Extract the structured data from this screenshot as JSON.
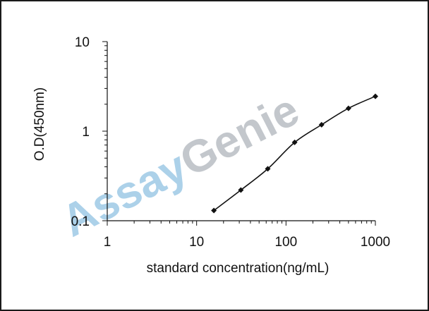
{
  "colors": {
    "axis": "#111111",
    "line": "#111111",
    "marker": "#111111",
    "watermark_blue": "#9ec9e6",
    "watermark_gray": "#b9bec4"
  },
  "watermark": {
    "part1": "Assay",
    "part2": "Genie"
  },
  "chart_data": {
    "type": "line",
    "title": "",
    "xlabel": "standard concentration(ng/mL)",
    "ylabel": "O.D(450nm)",
    "xscale": "log",
    "yscale": "log",
    "xlim": [
      1,
      1000
    ],
    "ylim": [
      0.1,
      10
    ],
    "xticks": [
      1,
      10,
      100,
      1000
    ],
    "xtick_labels": [
      "1",
      "10",
      "100",
      "1000"
    ],
    "yticks": [
      0.1,
      1,
      10
    ],
    "ytick_labels": [
      "0.1",
      "1",
      "10"
    ],
    "grid": false,
    "legend": "none",
    "markers": "diamond",
    "series": [
      {
        "x": [
          15.6,
          31.25,
          62.5,
          125,
          250,
          500,
          1000
        ],
        "y": [
          0.13,
          0.22,
          0.38,
          0.75,
          1.18,
          1.8,
          2.45
        ]
      }
    ]
  }
}
